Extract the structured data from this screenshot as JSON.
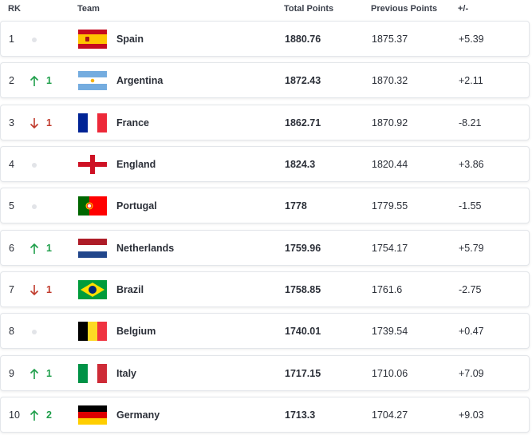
{
  "header": {
    "rank": "RK",
    "team": "Team",
    "total": "Total Points",
    "previous": "Previous Points",
    "change": "+/-"
  },
  "rows": [
    {
      "rank": "1",
      "trend": "same",
      "team": "Spain",
      "total": "1880.76",
      "previous": "1875.37",
      "change": "+5.39"
    },
    {
      "rank": "2",
      "trend": "up",
      "places": "1",
      "team": "Argentina",
      "total": "1872.43",
      "previous": "1870.32",
      "change": "+2.11"
    },
    {
      "rank": "3",
      "trend": "down",
      "places": "1",
      "team": "France",
      "total": "1862.71",
      "previous": "1870.92",
      "change": "-8.21"
    },
    {
      "rank": "4",
      "trend": "same",
      "team": "England",
      "total": "1824.3",
      "previous": "1820.44",
      "change": "+3.86"
    },
    {
      "rank": "5",
      "trend": "same",
      "team": "Portugal",
      "total": "1778",
      "previous": "1779.55",
      "change": "-1.55"
    },
    {
      "rank": "6",
      "trend": "up",
      "places": "1",
      "team": "Netherlands",
      "total": "1759.96",
      "previous": "1754.17",
      "change": "+5.79"
    },
    {
      "rank": "7",
      "trend": "down",
      "places": "1",
      "team": "Brazil",
      "total": "1758.85",
      "previous": "1761.6",
      "change": "-2.75"
    },
    {
      "rank": "8",
      "trend": "same",
      "team": "Belgium",
      "total": "1740.01",
      "previous": "1739.54",
      "change": "+0.47"
    },
    {
      "rank": "9",
      "trend": "up",
      "places": "1",
      "team": "Italy",
      "total": "1717.15",
      "previous": "1710.06",
      "change": "+7.09"
    },
    {
      "rank": "10",
      "trend": "up",
      "places": "2",
      "team": "Germany",
      "total": "1713.3",
      "previous": "1704.27",
      "change": "+9.03"
    }
  ]
}
